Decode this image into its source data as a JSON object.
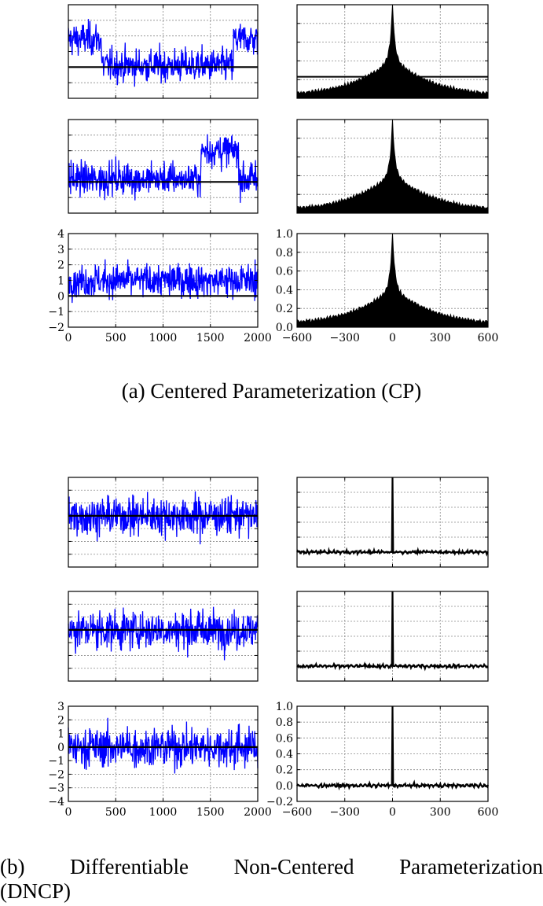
{
  "caption_a": "(a) Centered Parameterization (CP)",
  "caption_b_line1": "(b) Differentiable Non-Centered Parameterization",
  "caption_b_line2": "(DNCP)",
  "colors": {
    "trace": "#0000ff",
    "mean_line": "#000000",
    "acf": "#000000",
    "grid": "#8a8a8a"
  },
  "chart_data": [
    {
      "id": "cp-trace-1",
      "type": "line",
      "series": [
        {
          "values": "MCMC trace, blue"
        }
      ],
      "xlim": [
        0,
        2000
      ],
      "ylim": [
        -2,
        4
      ],
      "mean": 0,
      "grid": true,
      "tick_labels": false
    },
    {
      "id": "cp-acf-1",
      "type": "area",
      "xlim": [
        -600,
        600
      ],
      "ylim": [
        0,
        1
      ],
      "peak": 1.0,
      "base_near_lag600": 0.05,
      "grid": true,
      "tick_labels": false
    },
    {
      "id": "cp-trace-2",
      "type": "line",
      "xlim": [
        0,
        2000
      ],
      "ylim": [
        -2,
        4
      ],
      "mean": 0,
      "grid": true,
      "tick_labels": false
    },
    {
      "id": "cp-acf-2",
      "type": "area",
      "xlim": [
        -600,
        600
      ],
      "ylim": [
        0,
        1
      ],
      "peak": 1.0,
      "base_near_lag600": 0.05,
      "grid": true,
      "tick_labels": false
    },
    {
      "id": "cp-trace-3",
      "type": "line",
      "xlim": [
        0,
        2000
      ],
      "ylim": [
        -2,
        4
      ],
      "mean": 0,
      "grid": true,
      "x_ticks": [
        "0",
        "500",
        "1000",
        "1500",
        "2000"
      ],
      "y_ticks": [
        "−2",
        "−1",
        "0",
        "1",
        "2",
        "3",
        "4"
      ]
    },
    {
      "id": "cp-acf-3",
      "type": "area",
      "xlim": [
        -600,
        600
      ],
      "ylim": [
        0,
        1
      ],
      "peak": 1.0,
      "grid": true,
      "x_ticks": [
        "−600",
        "−300",
        "0",
        "300",
        "600"
      ],
      "y_ticks": [
        "0.0",
        "0.2",
        "0.4",
        "0.6",
        "0.8",
        "1.0"
      ]
    },
    {
      "id": "dncp-trace-1",
      "type": "line",
      "xlim": [
        0,
        2000
      ],
      "ylim": [
        -4,
        3
      ],
      "mean": 0,
      "grid": true,
      "tick_labels": false
    },
    {
      "id": "dncp-acf-1",
      "type": "line",
      "xlim": [
        -600,
        600
      ],
      "ylim": [
        -0.2,
        1
      ],
      "peak": 1.0,
      "base": 0,
      "grid": true,
      "tick_labels": false
    },
    {
      "id": "dncp-trace-2",
      "type": "line",
      "xlim": [
        0,
        2000
      ],
      "ylim": [
        -4,
        3
      ],
      "mean": 0,
      "grid": true,
      "tick_labels": false
    },
    {
      "id": "dncp-acf-2",
      "type": "line",
      "xlim": [
        -600,
        600
      ],
      "ylim": [
        -0.2,
        1
      ],
      "peak": 1.0,
      "base": 0,
      "grid": true,
      "tick_labels": false
    },
    {
      "id": "dncp-trace-3",
      "type": "line",
      "xlim": [
        0,
        2000
      ],
      "ylim": [
        -4,
        3
      ],
      "mean": 0,
      "grid": true,
      "x_ticks": [
        "0",
        "500",
        "1000",
        "1500",
        "2000"
      ],
      "y_ticks": [
        "−4",
        "−3",
        "−2",
        "−1",
        "0",
        "1",
        "2",
        "3"
      ]
    },
    {
      "id": "dncp-acf-3",
      "type": "line",
      "xlim": [
        -600,
        600
      ],
      "ylim": [
        -0.2,
        1
      ],
      "peak": 1.0,
      "base": 0,
      "grid": true,
      "x_ticks": [
        "−600",
        "−300",
        "0",
        "300",
        "600"
      ],
      "y_ticks": [
        "−0.2",
        "0.0",
        "0.2",
        "0.4",
        "0.6",
        "0.8",
        "1.0"
      ]
    }
  ]
}
